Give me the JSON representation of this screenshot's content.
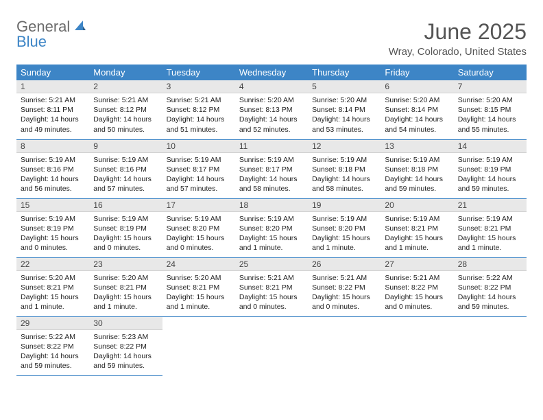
{
  "logo": {
    "line1": "General",
    "line2": "Blue"
  },
  "title": "June 2025",
  "location": "Wray, Colorado, United States",
  "colors": {
    "header_bg": "#3d85c6",
    "header_text": "#ffffff",
    "daynum_bg": "#e8e8e8",
    "border": "#3d85c6",
    "logo_gray": "#6b6b6b",
    "logo_blue": "#3d85c6"
  },
  "weekdays": [
    "Sunday",
    "Monday",
    "Tuesday",
    "Wednesday",
    "Thursday",
    "Friday",
    "Saturday"
  ],
  "labels": {
    "sunrise": "Sunrise",
    "sunset": "Sunset",
    "daylight": "Daylight"
  },
  "weeks": [
    [
      {
        "day": "1",
        "sunrise": "5:21 AM",
        "sunset": "8:11 PM",
        "daylight": "14 hours and 49 minutes."
      },
      {
        "day": "2",
        "sunrise": "5:21 AM",
        "sunset": "8:12 PM",
        "daylight": "14 hours and 50 minutes."
      },
      {
        "day": "3",
        "sunrise": "5:21 AM",
        "sunset": "8:12 PM",
        "daylight": "14 hours and 51 minutes."
      },
      {
        "day": "4",
        "sunrise": "5:20 AM",
        "sunset": "8:13 PM",
        "daylight": "14 hours and 52 minutes."
      },
      {
        "day": "5",
        "sunrise": "5:20 AM",
        "sunset": "8:14 PM",
        "daylight": "14 hours and 53 minutes."
      },
      {
        "day": "6",
        "sunrise": "5:20 AM",
        "sunset": "8:14 PM",
        "daylight": "14 hours and 54 minutes."
      },
      {
        "day": "7",
        "sunrise": "5:20 AM",
        "sunset": "8:15 PM",
        "daylight": "14 hours and 55 minutes."
      }
    ],
    [
      {
        "day": "8",
        "sunrise": "5:19 AM",
        "sunset": "8:16 PM",
        "daylight": "14 hours and 56 minutes."
      },
      {
        "day": "9",
        "sunrise": "5:19 AM",
        "sunset": "8:16 PM",
        "daylight": "14 hours and 57 minutes."
      },
      {
        "day": "10",
        "sunrise": "5:19 AM",
        "sunset": "8:17 PM",
        "daylight": "14 hours and 57 minutes."
      },
      {
        "day": "11",
        "sunrise": "5:19 AM",
        "sunset": "8:17 PM",
        "daylight": "14 hours and 58 minutes."
      },
      {
        "day": "12",
        "sunrise": "5:19 AM",
        "sunset": "8:18 PM",
        "daylight": "14 hours and 58 minutes."
      },
      {
        "day": "13",
        "sunrise": "5:19 AM",
        "sunset": "8:18 PM",
        "daylight": "14 hours and 59 minutes."
      },
      {
        "day": "14",
        "sunrise": "5:19 AM",
        "sunset": "8:19 PM",
        "daylight": "14 hours and 59 minutes."
      }
    ],
    [
      {
        "day": "15",
        "sunrise": "5:19 AM",
        "sunset": "8:19 PM",
        "daylight": "15 hours and 0 minutes."
      },
      {
        "day": "16",
        "sunrise": "5:19 AM",
        "sunset": "8:19 PM",
        "daylight": "15 hours and 0 minutes."
      },
      {
        "day": "17",
        "sunrise": "5:19 AM",
        "sunset": "8:20 PM",
        "daylight": "15 hours and 0 minutes."
      },
      {
        "day": "18",
        "sunrise": "5:19 AM",
        "sunset": "8:20 PM",
        "daylight": "15 hours and 1 minute."
      },
      {
        "day": "19",
        "sunrise": "5:19 AM",
        "sunset": "8:20 PM",
        "daylight": "15 hours and 1 minute."
      },
      {
        "day": "20",
        "sunrise": "5:19 AM",
        "sunset": "8:21 PM",
        "daylight": "15 hours and 1 minute."
      },
      {
        "day": "21",
        "sunrise": "5:19 AM",
        "sunset": "8:21 PM",
        "daylight": "15 hours and 1 minute."
      }
    ],
    [
      {
        "day": "22",
        "sunrise": "5:20 AM",
        "sunset": "8:21 PM",
        "daylight": "15 hours and 1 minute."
      },
      {
        "day": "23",
        "sunrise": "5:20 AM",
        "sunset": "8:21 PM",
        "daylight": "15 hours and 1 minute."
      },
      {
        "day": "24",
        "sunrise": "5:20 AM",
        "sunset": "8:21 PM",
        "daylight": "15 hours and 1 minute."
      },
      {
        "day": "25",
        "sunrise": "5:21 AM",
        "sunset": "8:21 PM",
        "daylight": "15 hours and 0 minutes."
      },
      {
        "day": "26",
        "sunrise": "5:21 AM",
        "sunset": "8:22 PM",
        "daylight": "15 hours and 0 minutes."
      },
      {
        "day": "27",
        "sunrise": "5:21 AM",
        "sunset": "8:22 PM",
        "daylight": "15 hours and 0 minutes."
      },
      {
        "day": "28",
        "sunrise": "5:22 AM",
        "sunset": "8:22 PM",
        "daylight": "14 hours and 59 minutes."
      }
    ],
    [
      {
        "day": "29",
        "sunrise": "5:22 AM",
        "sunset": "8:22 PM",
        "daylight": "14 hours and 59 minutes."
      },
      {
        "day": "30",
        "sunrise": "5:23 AM",
        "sunset": "8:22 PM",
        "daylight": "14 hours and 59 minutes."
      },
      null,
      null,
      null,
      null,
      null
    ]
  ]
}
